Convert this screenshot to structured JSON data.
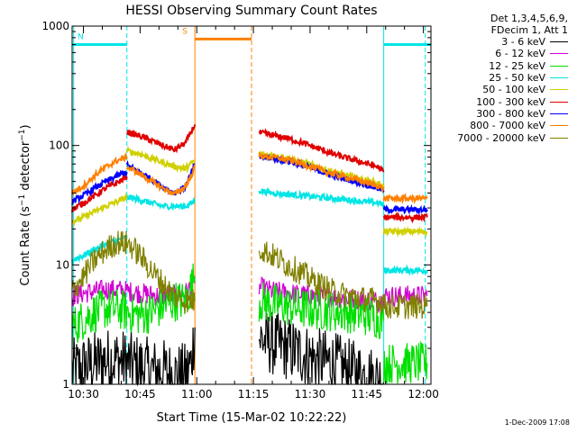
{
  "chart_data": {
    "type": "line",
    "title": "HESSI Observing Summary Count Rates",
    "xlabel": "Start Time (15-Mar-02 10:22:22)",
    "ylabel_prefix": "Count Rate (s",
    "ylabel_middle": " detector",
    "ylabel_suffix": ")",
    "ylabel_sup": "−1",
    "x_unit": "minutes since 10:00 (UT)",
    "xlim": [
      27,
      122
    ],
    "ylim": [
      1,
      1000
    ],
    "yscale": "log",
    "grid": false,
    "x_ticks": [
      {
        "v": 30,
        "label": "10:30"
      },
      {
        "v": 45,
        "label": "10:45"
      },
      {
        "v": 60,
        "label": "11:00"
      },
      {
        "v": 75,
        "label": "11:15"
      },
      {
        "v": 90,
        "label": "11:30"
      },
      {
        "v": 105,
        "label": "11:45"
      },
      {
        "v": 120,
        "label": "12:00"
      }
    ],
    "y_ticks": [
      {
        "v": 1,
        "label": "1"
      },
      {
        "v": 10,
        "label": "10"
      },
      {
        "v": 100,
        "label": "100"
      },
      {
        "v": 1000,
        "label": "1000"
      }
    ],
    "legend_header": [
      "Det 1,3,4,5,6,9,",
      "FDecim 1, Att 1"
    ],
    "legend_placement": "right",
    "timestamp": "1-Dec-2009 17:08",
    "flags": [
      {
        "label": "N",
        "start": 27,
        "end": 41.5,
        "y": 700,
        "color": "#00e5e5"
      },
      {
        "label": "S",
        "start": 59.5,
        "end": 74.5,
        "y": 780,
        "color": "#ff8000"
      },
      {
        "label": "",
        "start": 109.5,
        "end": 122,
        "y": 700,
        "color": "#00e5e5"
      }
    ],
    "vlines": [
      {
        "x": 27.4,
        "color": "#00e5e5",
        "style": "solid"
      },
      {
        "x": 41.5,
        "color": "#00e5e5",
        "style": "dashed"
      },
      {
        "x": 59.5,
        "color": "#ff8000",
        "style": "solid"
      },
      {
        "x": 74.5,
        "color": "#ff8000",
        "style": "dashed"
      },
      {
        "x": 109.5,
        "color": "#00e5e5",
        "style": "solid"
      },
      {
        "x": 120.5,
        "color": "#00e5e5",
        "style": "dashed"
      }
    ],
    "series": [
      {
        "name": "3 - 6 keV",
        "color": "#000000",
        "segments": [
          {
            "x": [
              27,
              30,
              33,
              36,
              39,
              42,
              45,
              48,
              51,
              54,
              57,
              58.5,
              59.5
            ],
            "y": [
              1.3,
              1.4,
              1.5,
              1.6,
              1.6,
              1.5,
              1.4,
              1.3,
              1.3,
              1.2,
              1.2,
              1.5,
              3
            ]
          },
          {
            "x": [
              76.5,
              80,
              84,
              88,
              92,
              96,
              100,
              104,
              108,
              109.5
            ],
            "y": [
              2.4,
              2.2,
              2.0,
              1.8,
              1.6,
              1.5,
              1.3,
              1.2,
              1.1,
              1.05
            ]
          }
        ]
      },
      {
        "name": "6 - 12 keV",
        "color": "#d200d2",
        "segments": [
          {
            "x": [
              27,
              30,
              33,
              36,
              39,
              42,
              45,
              48,
              51,
              54,
              57,
              59.5
            ],
            "y": [
              5.5,
              5.8,
              6.0,
              6.2,
              6.2,
              6.0,
              5.8,
              5.6,
              5.5,
              5.6,
              5.8,
              7
            ]
          },
          {
            "x": [
              76.5,
              80,
              84,
              88,
              92,
              96,
              100,
              104,
              108,
              109.5
            ],
            "y": [
              6.5,
              6.0,
              5.8,
              5.6,
              5.5,
              5.4,
              5.2,
              5.1,
              5.0,
              5.0
            ]
          },
          {
            "x": [
              109.5,
              112,
              115,
              118,
              121
            ],
            "y": [
              5.5,
              5.5,
              5.5,
              5.5,
              5.5
            ]
          }
        ]
      },
      {
        "name": "12 - 25 keV",
        "color": "#00e000",
        "segments": [
          {
            "x": [
              27,
              30,
              33,
              36,
              39,
              42,
              45,
              48,
              51,
              54,
              57,
              59.5
            ],
            "y": [
              3.0,
              3.5,
              4.0,
              4.3,
              4.3,
              4.0,
              3.8,
              4.0,
              4.5,
              5.0,
              5.0,
              8
            ]
          },
          {
            "x": [
              76.5,
              80,
              84,
              88,
              92,
              96,
              100,
              104,
              108,
              109.5
            ],
            "y": [
              5.0,
              4.7,
              4.5,
              4.3,
              4.2,
              4.1,
              4.0,
              3.8,
              3.6,
              3.4
            ]
          },
          {
            "x": [
              109.5,
              112,
              115,
              118,
              121
            ],
            "y": [
              1.5,
              1.5,
              1.5,
              1.5,
              1.5
            ]
          }
        ]
      },
      {
        "name": "25 - 50 keV",
        "color": "#00e5e5",
        "segments": [
          {
            "x": [
              27,
              30,
              33,
              36,
              39,
              41.5
            ],
            "y": [
              11,
              12,
              13.5,
              15,
              16,
              17
            ]
          },
          {
            "x": [
              41.5,
              45,
              48,
              51,
              54,
              57,
              59.5
            ],
            "y": [
              37,
              35,
              33,
              31,
              31,
              31,
              34
            ]
          },
          {
            "x": [
              76.5,
              80,
              84,
              88,
              92,
              96,
              100,
              104,
              108,
              109.5
            ],
            "y": [
              42,
              40,
              39,
              38,
              37,
              36,
              35,
              34,
              33,
              32
            ]
          },
          {
            "x": [
              109.5,
              112,
              115,
              118,
              121
            ],
            "y": [
              9,
              9,
              9,
              9,
              9
            ]
          }
        ]
      },
      {
        "name": "50 - 100 keV",
        "color": "#d0d000",
        "segments": [
          {
            "x": [
              27,
              30,
              33,
              36,
              39,
              41.5
            ],
            "y": [
              23,
              25,
              28,
              31,
              34,
              37
            ]
          },
          {
            "x": [
              41.5,
              45,
              48,
              51,
              54,
              57,
              59.5
            ],
            "y": [
              90,
              85,
              78,
              72,
              67,
              64,
              75
            ]
          },
          {
            "x": [
              76.5,
              80,
              84,
              88,
              92,
              96,
              100,
              104,
              108,
              109.5
            ],
            "y": [
              85,
              82,
              78,
              72,
              66,
              60,
              56,
              52,
              48,
              45
            ]
          },
          {
            "x": [
              109.5,
              112,
              115,
              118,
              121
            ],
            "y": [
              19,
              19,
              19,
              19,
              19
            ]
          }
        ]
      },
      {
        "name": "100 - 300 keV",
        "color": "#e00000",
        "segments": [
          {
            "x": [
              27,
              30,
              33,
              36,
              39,
              41.5
            ],
            "y": [
              29,
              33,
              38,
              44,
              49,
              55
            ]
          },
          {
            "x": [
              41.5,
              45,
              48,
              51,
              54,
              57,
              59.5
            ],
            "y": [
              130,
              120,
              110,
              100,
              92,
              105,
              150
            ]
          },
          {
            "x": [
              76.5,
              80,
              84,
              88,
              92,
              96,
              100,
              104,
              108,
              109.5
            ],
            "y": [
              128,
              122,
              115,
              105,
              95,
              85,
              78,
              72,
              66,
              60
            ]
          },
          {
            "x": [
              109.5,
              112,
              115,
              118,
              121
            ],
            "y": [
              25,
              25,
              25,
              25,
              25
            ]
          }
        ]
      },
      {
        "name": "300 - 800 keV",
        "color": "#0000ff",
        "segments": [
          {
            "x": [
              27,
              30,
              33,
              36,
              39,
              41.5
            ],
            "y": [
              34,
              38,
              44,
              50,
              56,
              60
            ]
          },
          {
            "x": [
              41.5,
              45,
              48,
              51,
              54,
              57,
              59.5
            ],
            "y": [
              68,
              60,
              52,
              45,
              40,
              45,
              70
            ]
          },
          {
            "x": [
              76.5,
              80,
              84,
              88,
              92,
              96,
              100,
              104,
              108,
              109.5
            ],
            "y": [
              80,
              78,
              74,
              68,
              62,
              56,
              52,
              48,
              44,
              42
            ]
          },
          {
            "x": [
              109.5,
              112,
              115,
              118,
              121
            ],
            "y": [
              29,
              29,
              29,
              29,
              29
            ]
          }
        ]
      },
      {
        "name": "800 - 7000 keV",
        "color": "#ff8000",
        "segments": [
          {
            "x": [
              27,
              30,
              33,
              36,
              39,
              41.5
            ],
            "y": [
              40,
              46,
              56,
              66,
              75,
              80
            ]
          },
          {
            "x": [
              41.5,
              45,
              48,
              51,
              54,
              57,
              59.5
            ],
            "y": [
              66,
              58,
              50,
              44,
              39,
              45,
              65
            ]
          },
          {
            "x": [
              76.5,
              80,
              84,
              88,
              92,
              96,
              100,
              104,
              108,
              109.5
            ],
            "y": [
              82,
              80,
              76,
              70,
              64,
              58,
              54,
              50,
              46,
              43
            ]
          },
          {
            "x": [
              109.5,
              112,
              115,
              118,
              121
            ],
            "y": [
              36,
              36,
              36,
              36,
              36
            ]
          }
        ]
      },
      {
        "name": "7000 - 20000 keV",
        "color": "#808000",
        "segments": [
          {
            "x": [
              27,
              30,
              33,
              36,
              39,
              42,
              45,
              48,
              51,
              54,
              57,
              59.5
            ],
            "y": [
              6,
              8,
              11,
              13.5,
              15.5,
              15,
              12,
              9,
              7,
              5.5,
              5,
              5
            ]
          },
          {
            "x": [
              76.5,
              80,
              84,
              88,
              92,
              96,
              100,
              104,
              108,
              109.5
            ],
            "y": [
              14,
              12,
              10,
              8.5,
              7,
              6,
              5.5,
              5.2,
              5,
              5
            ]
          },
          {
            "x": [
              109.5,
              112,
              115,
              118,
              121
            ],
            "y": [
              4.5,
              4.5,
              4.5,
              4.5,
              4.5
            ]
          }
        ]
      }
    ]
  }
}
